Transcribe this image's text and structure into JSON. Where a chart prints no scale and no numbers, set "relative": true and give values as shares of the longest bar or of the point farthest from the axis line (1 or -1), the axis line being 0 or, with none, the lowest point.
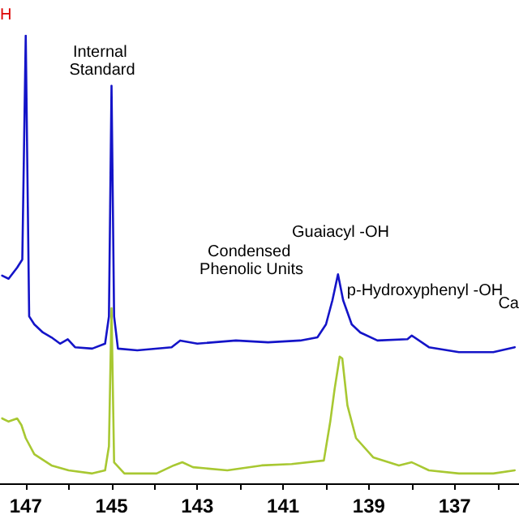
{
  "chart_data": {
    "type": "line",
    "relative": true,
    "xlim": [
      147.6,
      135.5
    ],
    "xticks": [
      {
        "value": 147,
        "label": "147"
      },
      {
        "value": 146,
        "label": null
      },
      {
        "value": 145,
        "label": "145"
      },
      {
        "value": 144,
        "label": null
      },
      {
        "value": 143,
        "label": "143"
      },
      {
        "value": 142,
        "label": null
      },
      {
        "value": 141,
        "label": "141"
      },
      {
        "value": 140,
        "label": null
      },
      {
        "value": 139,
        "label": "139"
      },
      {
        "value": 138,
        "label": null
      },
      {
        "value": 137,
        "label": "137"
      },
      {
        "value": 136,
        "label": null
      }
    ],
    "tick_labels": "x",
    "marker": "none",
    "line_style": "solid",
    "series": [
      {
        "color": "#1414c8",
        "x": [
          147.55,
          147.4,
          147.2,
          147.08,
          147.0,
          146.92,
          146.8,
          146.6,
          146.4,
          146.2,
          146.02,
          145.85,
          145.45,
          145.15,
          145.06,
          145.0,
          144.94,
          144.85,
          144.4,
          143.6,
          143.4,
          143.0,
          142.1,
          141.35,
          140.6,
          140.2,
          140.0,
          139.85,
          139.72,
          139.6,
          139.4,
          139.2,
          138.8,
          138.1,
          138.0,
          137.6,
          136.9,
          136.1,
          135.6
        ],
        "values": [
          0.464,
          0.457,
          0.482,
          0.5,
          1.0,
          0.373,
          0.355,
          0.337,
          0.326,
          0.312,
          0.322,
          0.304,
          0.301,
          0.312,
          0.373,
          0.888,
          0.373,
          0.301,
          0.297,
          0.304,
          0.319,
          0.312,
          0.319,
          0.315,
          0.319,
          0.326,
          0.355,
          0.409,
          0.467,
          0.409,
          0.355,
          0.337,
          0.319,
          0.322,
          0.33,
          0.304,
          0.293,
          0.293,
          0.304
        ]
      },
      {
        "color": "#a8c832",
        "x": [
          147.55,
          147.4,
          147.2,
          147.1,
          147.0,
          146.8,
          146.4,
          146.0,
          145.45,
          145.15,
          145.06,
          145.0,
          144.94,
          144.7,
          143.95,
          143.55,
          143.35,
          143.1,
          142.3,
          141.5,
          140.8,
          140.05,
          139.9,
          139.8,
          139.68,
          139.62,
          139.5,
          139.3,
          138.9,
          138.3,
          138.0,
          137.6,
          136.9,
          136.1,
          135.6
        ],
        "values": [
          0.145,
          0.138,
          0.145,
          0.13,
          0.101,
          0.065,
          0.04,
          0.029,
          0.022,
          0.029,
          0.083,
          0.391,
          0.047,
          0.022,
          0.022,
          0.04,
          0.047,
          0.036,
          0.029,
          0.04,
          0.043,
          0.051,
          0.138,
          0.21,
          0.283,
          0.279,
          0.174,
          0.101,
          0.058,
          0.04,
          0.047,
          0.029,
          0.022,
          0.022,
          0.029
        ]
      }
    ],
    "annotations": [
      "H",
      "Internal Standard",
      "Condensed Phenolic Units",
      "Guaiacyl -OH",
      "p-Hydroxyphenyl -OH",
      "Ca"
    ]
  }
}
